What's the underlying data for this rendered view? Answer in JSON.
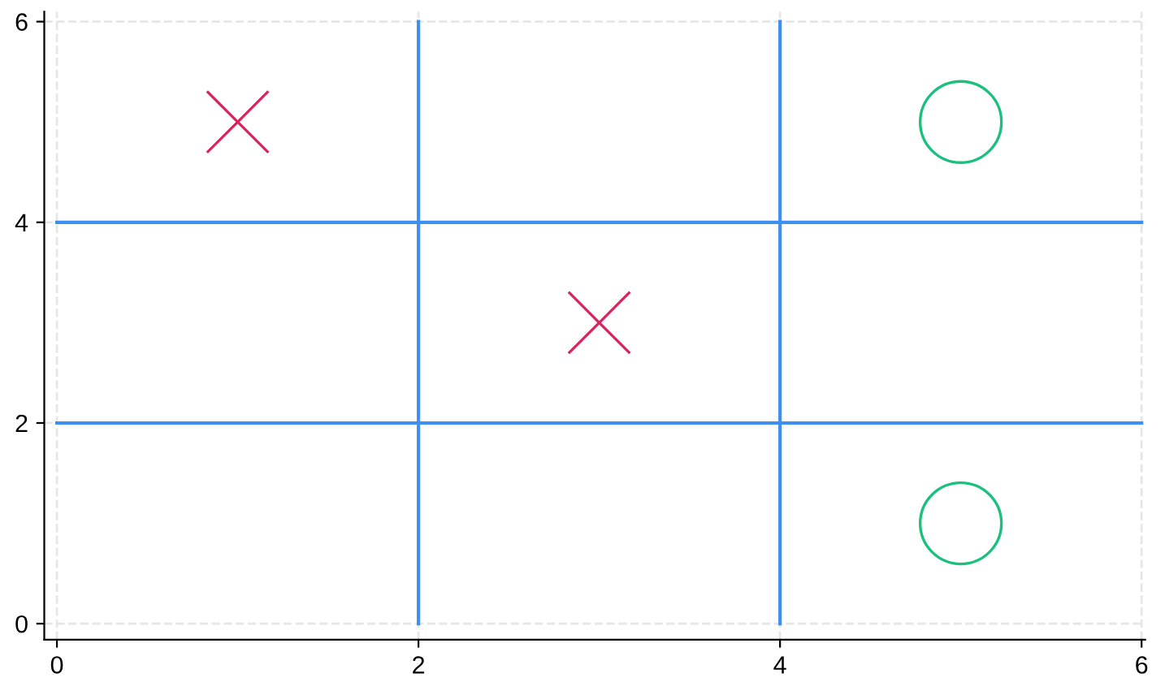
{
  "chart_data": {
    "type": "scatter",
    "xlim": [
      -0.07,
      6.02
    ],
    "ylim": [
      -0.16,
      6.1
    ],
    "xticks": [
      0,
      2,
      4,
      6
    ],
    "yticks": [
      0,
      2,
      4,
      6
    ],
    "grid": true,
    "series": [
      {
        "type": "line",
        "color": "#3d8ff0",
        "x": [
          2,
          2
        ],
        "values": [
          0,
          6
        ],
        "marker": "none",
        "line_style": "solid"
      },
      {
        "type": "line",
        "color": "#3d8ff0",
        "x": [
          4,
          4
        ],
        "values": [
          0,
          6
        ],
        "marker": "none",
        "line_style": "solid"
      },
      {
        "type": "line",
        "color": "#3d8ff0",
        "x": [
          0,
          6
        ],
        "values": [
          2,
          2
        ],
        "marker": "none",
        "line_style": "solid"
      },
      {
        "type": "line",
        "color": "#3d8ff0",
        "x": [
          0,
          6
        ],
        "values": [
          4,
          4
        ],
        "marker": "none",
        "line_style": "solid"
      },
      {
        "type": "scatter",
        "color": "#d6245e",
        "x": [
          1,
          3
        ],
        "values": [
          5,
          3
        ],
        "marker": "cross"
      },
      {
        "type": "scatter",
        "color": "#1dbf7f",
        "x": [
          5,
          5
        ],
        "values": [
          5,
          1
        ],
        "marker": "circle"
      }
    ]
  }
}
